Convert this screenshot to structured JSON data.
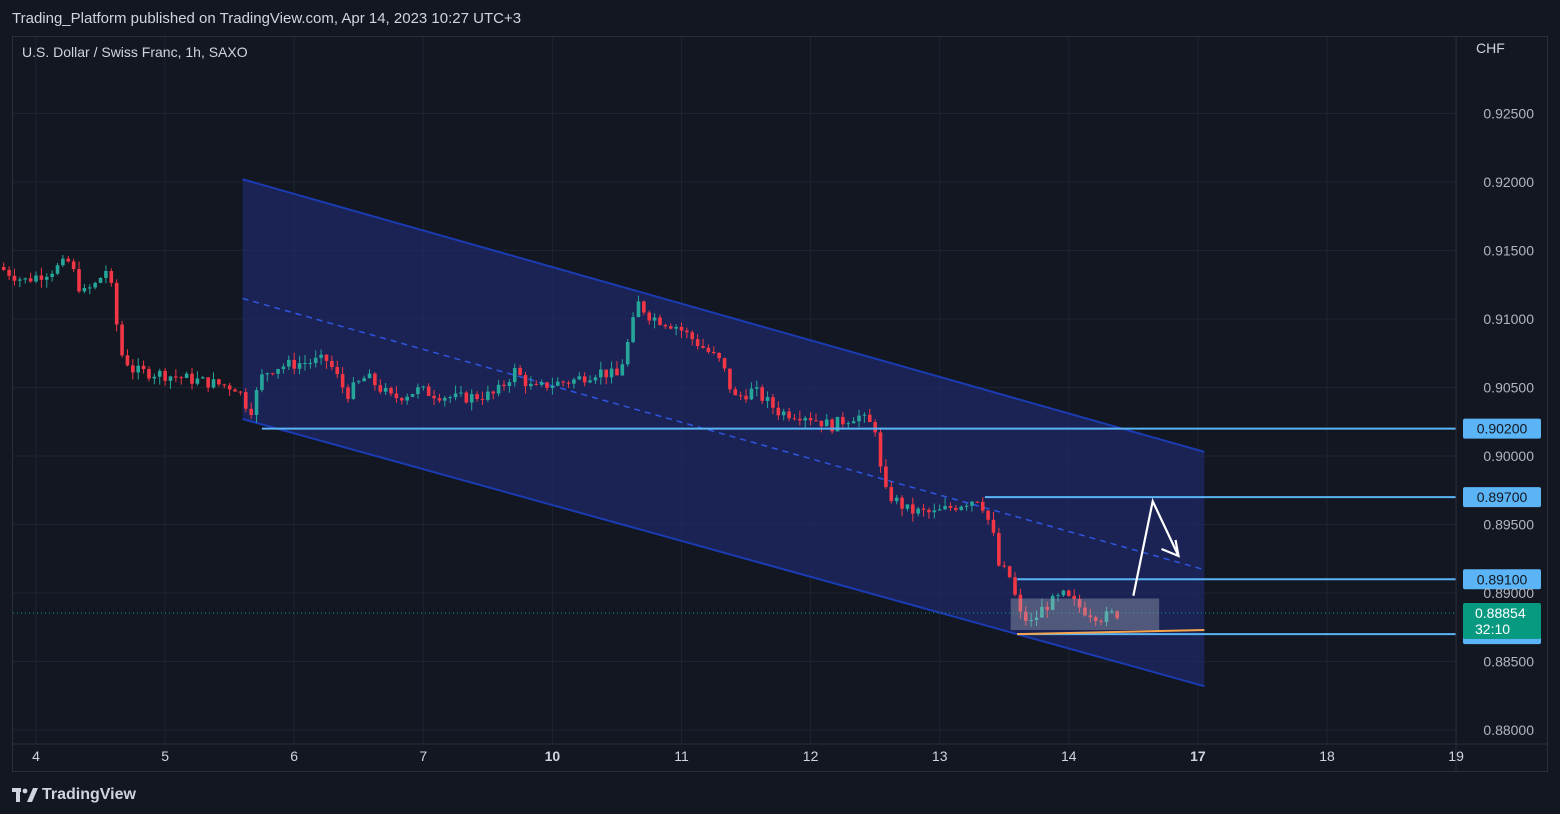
{
  "header": {
    "published_text": "Trading_Platform published on TradingView.com, Apr 14, 2023 10:27 UTC+3"
  },
  "symbol": {
    "label": "U.S. Dollar / Swiss Franc, 1h, SAXO",
    "currency": "CHF"
  },
  "footer": {
    "brand": "TradingView"
  },
  "colors": {
    "background": "#131722",
    "up_candle": "#26a69a",
    "down_candle": "#f23645",
    "channel_fill": "#1e2a6e",
    "channel_line": "#1b3bb3",
    "level_line": "#5ab4f5",
    "level_label_bg": "#5ab4f5",
    "last_price_bg": "#089981",
    "orange_line": "#f7a54b",
    "arrow": "#ffffff"
  },
  "chart_data": {
    "type": "candlestick",
    "title": "U.S. Dollar / Swiss Franc, 1h, SAXO",
    "y_unit": "CHF",
    "ylim": [
      0.8785,
      0.9295
    ],
    "y_ticks": [
      "0.92500",
      "0.92000",
      "0.91500",
      "0.91000",
      "0.90500",
      "0.90000",
      "0.89500",
      "0.89000",
      "0.88500",
      "0.88000"
    ],
    "x_ticks": [
      {
        "label": "4",
        "day": 4,
        "bold": false
      },
      {
        "label": "5",
        "day": 5,
        "bold": false
      },
      {
        "label": "6",
        "day": 6,
        "bold": false
      },
      {
        "label": "7",
        "day": 7,
        "bold": false
      },
      {
        "label": "10",
        "day": 8,
        "bold": true
      },
      {
        "label": "11",
        "day": 9,
        "bold": false
      },
      {
        "label": "12",
        "day": 10,
        "bold": false
      },
      {
        "label": "13",
        "day": 11,
        "bold": false
      },
      {
        "label": "14",
        "day": 12,
        "bold": false
      },
      {
        "label": "17",
        "day": 13,
        "bold": true
      },
      {
        "label": "18",
        "day": 14,
        "bold": false
      },
      {
        "label": "19",
        "day": 15,
        "bold": false
      }
    ],
    "price_path": [
      [
        3.75,
        0.9138
      ],
      [
        3.95,
        0.9128
      ],
      [
        4.15,
        0.9135
      ],
      [
        4.3,
        0.9142
      ],
      [
        4.4,
        0.9118
      ],
      [
        4.5,
        0.9125
      ],
      [
        4.6,
        0.9138
      ],
      [
        4.7,
        0.9075
      ],
      [
        4.8,
        0.9062
      ],
      [
        5.0,
        0.906
      ],
      [
        5.3,
        0.9055
      ],
      [
        5.6,
        0.905
      ],
      [
        5.7,
        0.9032
      ],
      [
        5.8,
        0.906
      ],
      [
        5.9,
        0.9065
      ],
      [
        6.1,
        0.9068
      ],
      [
        6.3,
        0.907
      ],
      [
        6.45,
        0.9045
      ],
      [
        6.6,
        0.9058
      ],
      [
        6.8,
        0.9042
      ],
      [
        7.0,
        0.9048
      ],
      [
        7.3,
        0.9042
      ],
      [
        7.6,
        0.9045
      ],
      [
        7.75,
        0.9062
      ],
      [
        7.9,
        0.9048
      ],
      [
        8.0,
        0.9052
      ],
      [
        8.2,
        0.9055
      ],
      [
        8.4,
        0.9062
      ],
      [
        8.55,
        0.9058
      ],
      [
        8.65,
        0.909
      ],
      [
        8.7,
        0.9112
      ],
      [
        8.8,
        0.9102
      ],
      [
        9.0,
        0.9095
      ],
      [
        9.2,
        0.908
      ],
      [
        9.35,
        0.9068
      ],
      [
        9.45,
        0.9042
      ],
      [
        9.6,
        0.9048
      ],
      [
        9.8,
        0.9032
      ],
      [
        10.0,
        0.903
      ],
      [
        10.2,
        0.9022
      ],
      [
        10.4,
        0.903
      ],
      [
        10.55,
        0.902
      ],
      [
        10.6,
        0.8975
      ],
      [
        10.8,
        0.896
      ],
      [
        11.0,
        0.8958
      ],
      [
        11.2,
        0.8965
      ],
      [
        11.35,
        0.897
      ],
      [
        11.45,
        0.8945
      ],
      [
        11.5,
        0.892
      ],
      [
        11.6,
        0.891
      ],
      [
        11.65,
        0.8885
      ],
      [
        11.75,
        0.8878
      ],
      [
        11.85,
        0.889
      ],
      [
        12.0,
        0.8898
      ],
      [
        12.15,
        0.8888
      ],
      [
        12.3,
        0.8882
      ],
      [
        12.4,
        0.8885
      ]
    ],
    "channel": {
      "upper": [
        [
          5.6,
          0.9202
        ],
        [
          13.05,
          0.9003
        ]
      ],
      "lower": [
        [
          5.6,
          0.9027
        ],
        [
          13.05,
          0.8832
        ]
      ],
      "mid_dashed": [
        [
          5.6,
          0.9115
        ],
        [
          13.05,
          0.8917
        ]
      ]
    },
    "horizontal_levels": [
      {
        "price": 0.902,
        "label": "0.90200",
        "x_start": 5.75
      },
      {
        "price": 0.897,
        "label": "0.89700",
        "x_start": 11.35
      },
      {
        "price": 0.891,
        "label": "0.89100",
        "x_start": 11.6
      },
      {
        "price": 0.887,
        "label": "0.88700",
        "x_start": 11.6
      }
    ],
    "last_price": {
      "price": 0.88854,
      "label": "0.88854",
      "countdown": "32:10"
    },
    "consolidation_box": {
      "x": [
        11.55,
        12.7
      ],
      "y": [
        0.8873,
        0.8896
      ]
    },
    "orange_line": [
      [
        11.6,
        0.887
      ],
      [
        13.05,
        0.8873
      ]
    ],
    "projection_arrow": [
      [
        12.5,
        0.8898
      ],
      [
        12.65,
        0.8967
      ],
      [
        12.85,
        0.8927
      ]
    ]
  }
}
